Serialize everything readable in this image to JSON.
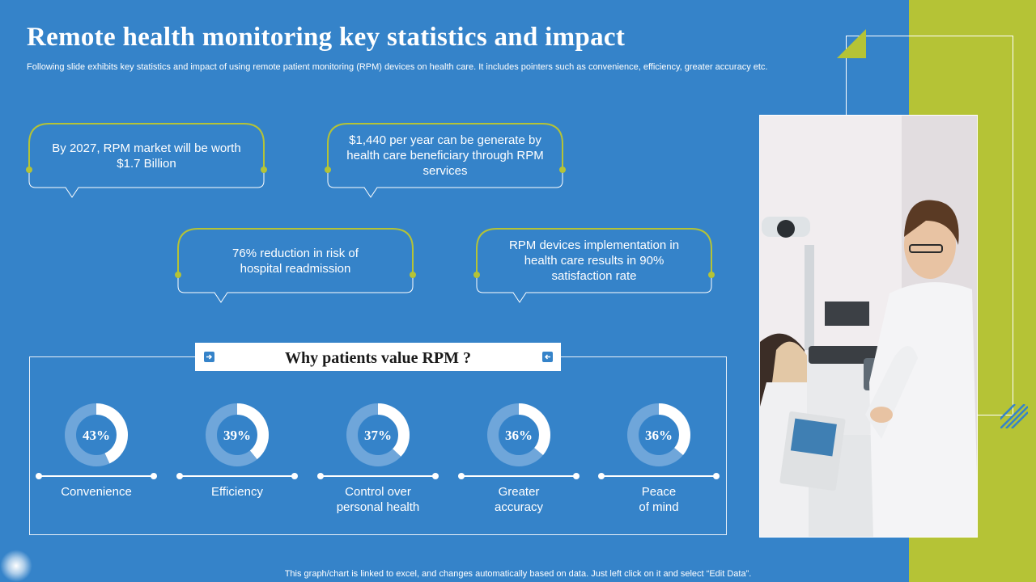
{
  "header": {
    "title": "Remote health monitoring key statistics and impact",
    "subtitle": "Following slide exhibits key statistics and impact of using remote patient monitoring (RPM) devices on health care. It includes pointers such as convenience, efficiency, greater accuracy etc."
  },
  "stats": [
    "By 2027, RPM market will be worth $1.7 Billion",
    "$1,440 per year can be generate by health care beneficiary through RPM services",
    "76% reduction in risk of hospital readmission",
    "RPM devices implementation in health care results in 90% satisfaction rate"
  ],
  "panel": {
    "title": "Why patients value RPM ?"
  },
  "chart_data": {
    "type": "pie",
    "title": "Why patients value RPM ?",
    "categories": [
      "Convenience",
      "Efficiency",
      "Control over personal health",
      "Greater accuracy",
      "Peace of mind"
    ],
    "values": [
      43,
      39,
      37,
      36,
      36
    ],
    "value_labels": [
      "43%",
      "39%",
      "37%",
      "36%",
      "36%"
    ],
    "label_lines": [
      [
        "Convenience"
      ],
      [
        "Efficiency"
      ],
      [
        "Control over",
        "personal health"
      ],
      [
        "Greater",
        "accuracy"
      ],
      [
        "Peace",
        "of mind"
      ]
    ]
  },
  "footer": {
    "note": "This graph/chart is linked to excel, and changes automatically based on data. Just left click on it and select “Edit Data”."
  },
  "colors": {
    "background": "#3583c9",
    "accent": "#b5c336",
    "donut_track": "#6fa6da",
    "donut_fill": "#ffffff"
  }
}
